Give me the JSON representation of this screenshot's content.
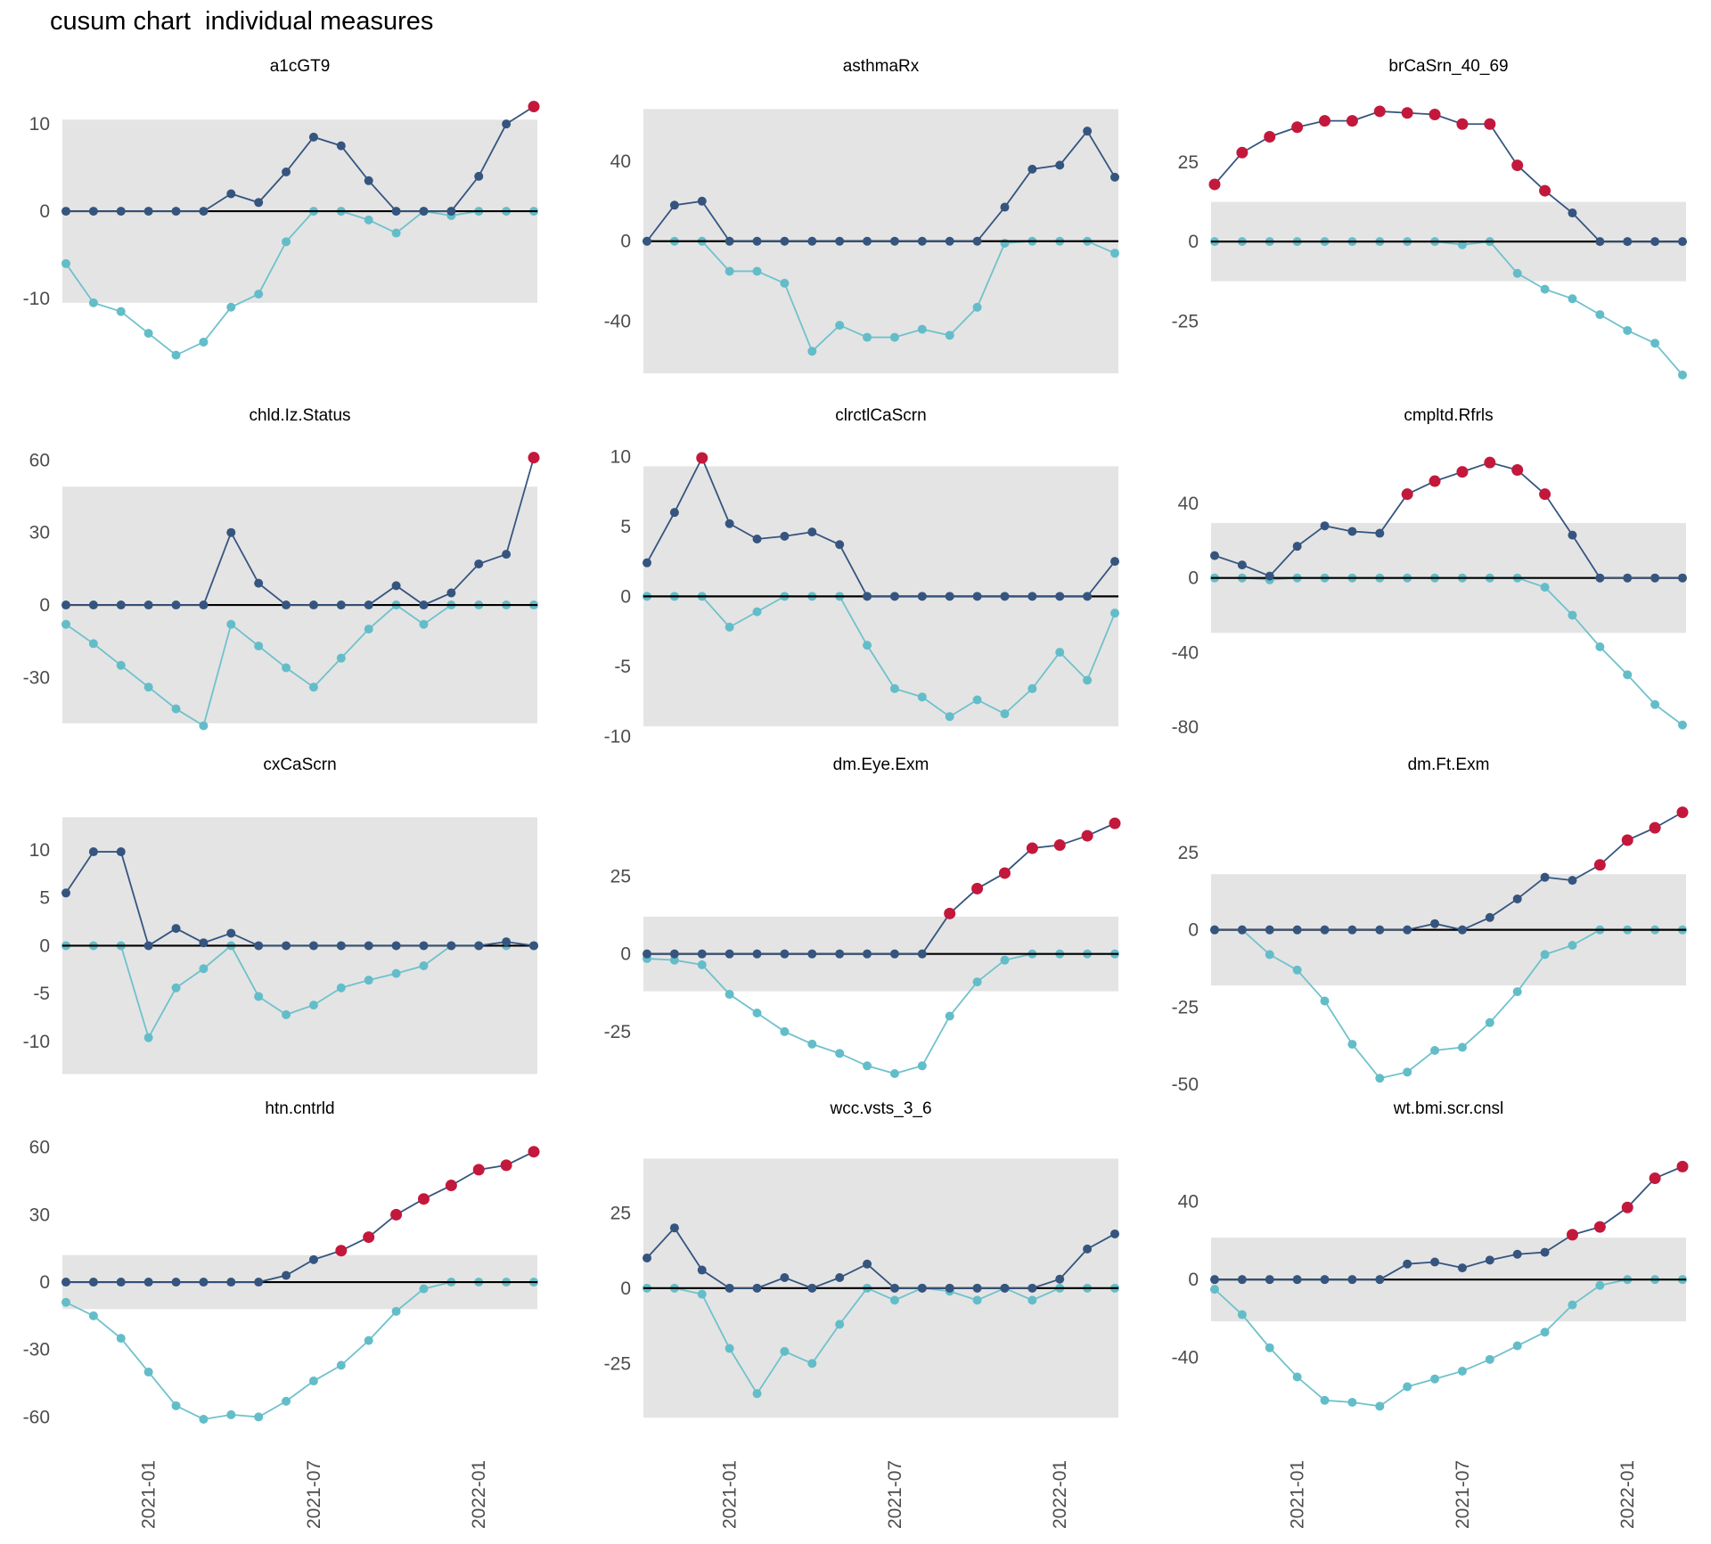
{
  "header": {
    "title": "cusum chart  individual measures"
  },
  "colors": {
    "upper_line": "#35557f",
    "lower_line": "#6fc2cc",
    "lower_point": "#63bdc9",
    "signal_point": "#c3183c",
    "band": "#e4e4e4",
    "zero_line": "#000000",
    "axis_text": "#4d4d4d",
    "panel_title_text": "#000000"
  },
  "x_axis": {
    "months": [
      "2020-10",
      "2020-11",
      "2020-12",
      "2021-01",
      "2021-02",
      "2021-03",
      "2021-04",
      "2021-05",
      "2021-06",
      "2021-07",
      "2021-08",
      "2021-09",
      "2021-10",
      "2021-11",
      "2021-12",
      "2022-01",
      "2022-02",
      "2022-03"
    ],
    "tick_labels": [
      "2021-01",
      "2021-07",
      "2022-01"
    ],
    "tick_indices": [
      3,
      9,
      15
    ]
  },
  "chart_data": [
    {
      "type": "line",
      "title": "a1cGT9",
      "yticks": [
        10,
        0,
        -10
      ],
      "ylim": [
        -19.5,
        14
      ],
      "band": {
        "lower": -10.5,
        "upper": 10.5
      },
      "series": [
        {
          "name": "upper-cusum",
          "values": [
            0,
            0,
            0,
            0,
            0,
            0,
            2,
            1,
            4.5,
            8.5,
            7.5,
            3.5,
            0,
            0,
            0,
            4,
            10,
            12
          ],
          "signals": [
            17
          ]
        },
        {
          "name": "lower-cusum",
          "values": [
            -6,
            -10.5,
            -11.5,
            -14,
            -16.5,
            -15,
            -11,
            -9.5,
            -3.5,
            0,
            0,
            -1,
            -2.5,
            0,
            -0.5,
            0,
            0,
            0
          ],
          "signals": []
        }
      ]
    },
    {
      "type": "line",
      "title": "asthmaRx",
      "yticks": [
        40,
        0,
        -40
      ],
      "ylim": [
        -70,
        76
      ],
      "band": {
        "lower": -66,
        "upper": 66
      },
      "series": [
        {
          "name": "upper-cusum",
          "values": [
            0,
            18,
            20,
            0,
            0,
            0,
            0,
            0,
            0,
            0,
            0,
            0,
            0,
            17,
            36,
            38,
            55,
            32
          ],
          "signals": []
        },
        {
          "name": "lower-cusum",
          "values": [
            0,
            0,
            0,
            -15,
            -15,
            -21,
            -55,
            -42,
            -48,
            -48,
            -44,
            -47,
            -33,
            -1,
            0,
            0,
            0,
            -6
          ],
          "signals": []
        }
      ]
    },
    {
      "type": "line",
      "title": "brCaSrn_40_69",
      "yticks": [
        25,
        0,
        -25
      ],
      "ylim": [
        -44,
        48
      ],
      "band": {
        "lower": -12.5,
        "upper": 12.5
      },
      "series": [
        {
          "name": "upper-cusum",
          "values": [
            18,
            28,
            33,
            36,
            38,
            38,
            41,
            40.5,
            40,
            37,
            37,
            24,
            16,
            9,
            0,
            0,
            0,
            0
          ],
          "signals": [
            0,
            1,
            2,
            3,
            4,
            5,
            6,
            7,
            8,
            9,
            10,
            11,
            12
          ]
        },
        {
          "name": "lower-cusum",
          "values": [
            0,
            0,
            0,
            0,
            0,
            0,
            0,
            0,
            0,
            -1,
            0,
            -10,
            -15,
            -18,
            -23,
            -28,
            -32,
            -42
          ],
          "signals": []
        }
      ]
    },
    {
      "type": "line",
      "title": "chld.Iz.Status",
      "yticks": [
        60,
        30,
        0,
        -30
      ],
      "ylim": [
        -52,
        69
      ],
      "band": {
        "lower": -49,
        "upper": 49
      },
      "series": [
        {
          "name": "upper-cusum",
          "values": [
            0,
            0,
            0,
            0,
            0,
            0,
            30,
            9,
            0,
            0,
            0,
            0,
            8,
            0,
            5,
            17,
            21,
            61
          ],
          "signals": [
            17
          ]
        },
        {
          "name": "lower-cusum",
          "values": [
            -8,
            -16,
            -25,
            -34,
            -43,
            -50,
            -8,
            -17,
            -26,
            -34,
            -22,
            -10,
            0,
            -8,
            0,
            0,
            0,
            0
          ],
          "signals": []
        }
      ]
    },
    {
      "type": "line",
      "title": "clrctlCaScrn",
      "yticks": [
        10,
        5,
        0,
        -5,
        -10
      ],
      "ylim": [
        -9.6,
        11.3
      ],
      "band": {
        "lower": -9.3,
        "upper": 9.3
      },
      "series": [
        {
          "name": "upper-cusum",
          "values": [
            2.4,
            6,
            9.9,
            5.2,
            4.1,
            4.3,
            4.6,
            3.7,
            0,
            0,
            0,
            0,
            0,
            0,
            0,
            0,
            0,
            2.5
          ],
          "signals": [
            2
          ]
        },
        {
          "name": "lower-cusum",
          "values": [
            0,
            0,
            0,
            -2.2,
            -1.1,
            0,
            0,
            0,
            -3.5,
            -6.6,
            -7.2,
            -8.6,
            -7.4,
            -8.4,
            -6.6,
            -4,
            -6,
            -1.2
          ],
          "signals": []
        }
      ]
    },
    {
      "type": "line",
      "title": "cmpltd.Rfrls",
      "yticks": [
        40,
        0,
        -40,
        -80
      ],
      "ylim": [
        -82,
        75
      ],
      "band": {
        "lower": -29.5,
        "upper": 29.5
      },
      "series": [
        {
          "name": "upper-cusum",
          "values": [
            12,
            7,
            1,
            17,
            28,
            25,
            24,
            45,
            52,
            57,
            62,
            58,
            45,
            23,
            0,
            0,
            0,
            0
          ],
          "signals": [
            7,
            8,
            9,
            10,
            11,
            12
          ]
        },
        {
          "name": "lower-cusum",
          "values": [
            0,
            0,
            -1,
            0,
            0,
            0,
            0,
            0,
            0,
            0,
            0,
            0,
            -5,
            -20,
            -37,
            -52,
            -68,
            -79
          ],
          "signals": []
        }
      ]
    },
    {
      "type": "line",
      "title": "cxCaScrn",
      "yticks": [
        10,
        5,
        0,
        -5,
        -10
      ],
      "ylim": [
        -14,
        16.5
      ],
      "band": {
        "lower": -13.4,
        "upper": 13.4
      },
      "series": [
        {
          "name": "upper-cusum",
          "values": [
            5.5,
            9.8,
            9.8,
            0,
            1.8,
            0.3,
            1.3,
            0,
            0,
            0,
            0,
            0,
            0,
            0,
            0,
            0,
            0.4,
            0
          ],
          "signals": []
        },
        {
          "name": "lower-cusum",
          "values": [
            0,
            0,
            0,
            -9.6,
            -4.4,
            -2.4,
            0,
            -5.3,
            -7.2,
            -6.2,
            -4.4,
            -3.6,
            -2.9,
            -2.1,
            0,
            0,
            0,
            0
          ],
          "signals": []
        }
      ]
    },
    {
      "type": "line",
      "title": "dm.Eye.Exm",
      "yticks": [
        25,
        0,
        -25
      ],
      "ylim": [
        -40.5,
        53.5
      ],
      "band": {
        "lower": -12,
        "upper": 12
      },
      "series": [
        {
          "name": "upper-cusum",
          "values": [
            0,
            0,
            0,
            0,
            0,
            0,
            0,
            0,
            0,
            0,
            0,
            13,
            21,
            26,
            34,
            35,
            38,
            42
          ],
          "signals": [
            11,
            12,
            13,
            14,
            15,
            16,
            17
          ]
        },
        {
          "name": "lower-cusum",
          "values": [
            -1.5,
            -2,
            -3.5,
            -13,
            -19,
            -25,
            -29,
            -32,
            -36,
            -38.5,
            -36,
            -20,
            -9,
            -2,
            0,
            0,
            0,
            0
          ],
          "signals": []
        }
      ]
    },
    {
      "type": "line",
      "title": "dm.Ft.Exm",
      "yticks": [
        25,
        0,
        -25,
        -50
      ],
      "ylim": [
        -48.5,
        46
      ],
      "band": {
        "lower": -18,
        "upper": 18
      },
      "series": [
        {
          "name": "upper-cusum",
          "values": [
            0,
            0,
            0,
            0,
            0,
            0,
            0,
            0,
            2,
            0,
            4,
            10,
            17,
            16,
            21,
            29,
            33,
            38
          ],
          "signals": [
            14,
            15,
            16,
            17
          ]
        },
        {
          "name": "lower-cusum",
          "values": [
            0,
            0,
            -8,
            -13,
            -23,
            -37,
            -48,
            -46,
            -39,
            -38,
            -30,
            -20,
            -8,
            -5,
            0,
            0,
            0,
            0
          ],
          "signals": []
        }
      ]
    },
    {
      "type": "line",
      "title": "htn.cntrld",
      "yticks": [
        60,
        30,
        0,
        -30,
        -60
      ],
      "ylim": [
        -63,
        67
      ],
      "band": {
        "lower": -12,
        "upper": 12
      },
      "series": [
        {
          "name": "upper-cusum",
          "values": [
            0,
            0,
            0,
            0,
            0,
            0,
            0,
            0,
            3,
            10,
            14,
            20,
            30,
            37,
            43,
            50,
            52,
            58
          ],
          "signals": [
            10,
            11,
            12,
            13,
            14,
            15,
            16,
            17
          ]
        },
        {
          "name": "lower-cusum",
          "values": [
            -9,
            -15,
            -25,
            -40,
            -55,
            -61,
            -59,
            -60,
            -53,
            -44,
            -37,
            -26,
            -13,
            -3,
            0,
            0,
            0,
            0
          ],
          "signals": []
        }
      ]
    },
    {
      "type": "line",
      "title": "wcc.vsts_3_6",
      "yticks": [
        25,
        0,
        -25
      ],
      "ylim": [
        -45,
        52
      ],
      "band": {
        "lower": -43,
        "upper": 43
      },
      "series": [
        {
          "name": "upper-cusum",
          "values": [
            10,
            20,
            6,
            0,
            0,
            3.5,
            0,
            3.5,
            8,
            0,
            0,
            0,
            0,
            0,
            0,
            3,
            13,
            18
          ],
          "signals": []
        },
        {
          "name": "lower-cusum",
          "values": [
            0,
            0,
            -2,
            -20,
            -35,
            -21,
            -25,
            -12,
            0,
            -4,
            0,
            -1,
            -4,
            0,
            -4,
            0,
            0,
            0
          ],
          "signals": []
        }
      ]
    },
    {
      "type": "line",
      "title": "wt.bmi.scr.cnsl",
      "yticks": [
        40,
        0,
        -40
      ],
      "ylim": [
        -74,
        76
      ],
      "band": {
        "lower": -21.5,
        "upper": 21.5
      },
      "series": [
        {
          "name": "upper-cusum",
          "values": [
            0,
            0,
            0,
            0,
            0,
            0,
            0,
            8,
            9,
            6,
            10,
            13,
            14,
            23,
            27,
            37,
            52,
            58
          ],
          "signals": [
            13,
            14,
            15,
            16,
            17
          ]
        },
        {
          "name": "lower-cusum",
          "values": [
            -5,
            -18,
            -35,
            -50,
            -62,
            -63,
            -65,
            -55,
            -51,
            -47,
            -41,
            -34,
            -27,
            -13,
            -3,
            0,
            0,
            0
          ],
          "signals": []
        }
      ]
    }
  ]
}
